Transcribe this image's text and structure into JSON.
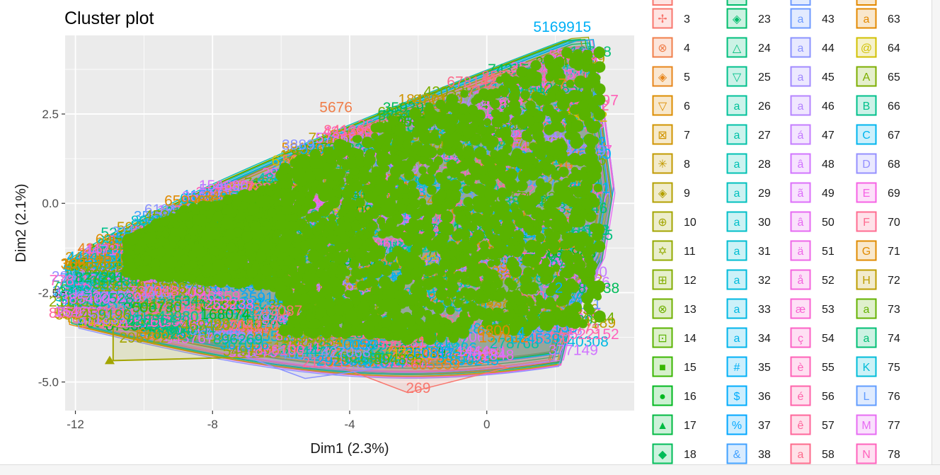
{
  "chart_data": {
    "type": "scatter",
    "title": "Cluster plot",
    "xlabel": "Dim1 (2.3%)",
    "ylabel": "Dim2 (2.1%)",
    "xlim": [
      -12.3,
      4.3
    ],
    "ylim": [
      -5.8,
      4.7
    ],
    "xticks": [
      -12,
      -8,
      -4,
      0
    ],
    "xtick_labels": [
      "-12",
      "-8",
      "-4",
      "0"
    ],
    "yticks": [
      -5.0,
      -2.5,
      0.0,
      2.5
    ],
    "ytick_labels": [
      "-5.0",
      "-2.5",
      "0.0",
      "2.5"
    ],
    "grid": true,
    "legend_position": "right",
    "legend_entries": [
      [
        "3",
        "23",
        "43",
        "63"
      ],
      [
        "4",
        "24",
        "44",
        "64"
      ],
      [
        "5",
        "25",
        "45",
        "65"
      ],
      [
        "6",
        "26",
        "46",
        "66"
      ],
      [
        "7",
        "27",
        "47",
        "67"
      ],
      [
        "8",
        "28",
        "48",
        "68"
      ],
      [
        "9",
        "29",
        "49",
        "69"
      ],
      [
        "10",
        "30",
        "50",
        "70"
      ],
      [
        "11",
        "31",
        "51",
        "71"
      ],
      [
        "12",
        "32",
        "52",
        "72"
      ],
      [
        "13",
        "33",
        "53",
        "73"
      ],
      [
        "14",
        "34",
        "54",
        "74"
      ],
      [
        "15",
        "35",
        "55",
        "75"
      ],
      [
        "16",
        "36",
        "56",
        "76"
      ],
      [
        "17",
        "37",
        "57",
        "77"
      ],
      [
        "18",
        "38",
        "58",
        "78"
      ]
    ],
    "legend_column_colors": [
      [
        "#f8766d",
        "#f07e4a",
        "#e7861b",
        "#dc8d00",
        "#d09400",
        "#c29a00",
        "#b3a000",
        "#a3a500",
        "#93aa00",
        "#82ad00",
        "#6fb000",
        "#59b300",
        "#39b600",
        "#00b81f",
        "#00ba42",
        "#00bc59"
      ],
      [
        "#00bd6c",
        "#00bf7d",
        "#00c08c",
        "#00c19a",
        "#00c1a7",
        "#00c1b3",
        "#00c0be",
        "#00bfc9",
        "#00bdd2",
        "#00bbdb",
        "#00b8e3",
        "#00b4eb",
        "#00b0f6",
        "#00acfc",
        "#00a7ff",
        "#41a1ff"
      ],
      [
        "#6e9aff",
        "#8b93ff",
        "#a28aff",
        "#b584ff",
        "#c47cff",
        "#d174ff",
        "#dc6ffa",
        "#e66af2",
        "#ee67e8",
        "#f464de",
        "#f962d2",
        "#fc61c5",
        "#ff61b7",
        "#ff62a9",
        "#ff659a",
        "#fd6a8b"
      ],
      [
        "#e38900",
        "#d1c000",
        "#7cae00",
        "#00c08b",
        "#00b5ee",
        "#9590ff",
        "#f662e4",
        "#ff6c91",
        "#e08b00",
        "#bd9d00",
        "#64b200",
        "#00bf74",
        "#00bcd8",
        "#619cff",
        "#e76bf3",
        "#ff62bc"
      ]
    ],
    "legend_glyphs": [
      [
        "✢",
        "⊗",
        "◈",
        "▽",
        "⊠",
        "✳",
        "◈",
        "⊕",
        "✡",
        "⊞",
        "⊗",
        "⊡",
        "■",
        "●",
        "▲",
        "◆"
      ],
      [
        "◈",
        "△",
        "▽",
        "a",
        "a",
        "a",
        "a",
        "a",
        "a",
        "a",
        "a",
        "a",
        "#",
        "$",
        "%",
        "&"
      ],
      [
        "a",
        "a",
        "a",
        "a",
        "á",
        "â",
        "ã",
        "â",
        "ä",
        "å",
        "æ",
        "ç",
        "è",
        "é",
        "ê",
        "a"
      ],
      [
        "a",
        "@",
        "A",
        "B",
        "C",
        "D",
        "E",
        "F",
        "G",
        "H",
        "a",
        "a",
        "K",
        "L",
        "M",
        "N"
      ]
    ],
    "cluster_color": "#59b300",
    "annotations": [
      "5169915",
      "295722",
      "469420",
      "704170",
      "243087",
      "605559",
      "269",
      "5676",
      "6800",
      "3889",
      "459196",
      "0059",
      "4",
      "7",
      "2"
    ]
  }
}
